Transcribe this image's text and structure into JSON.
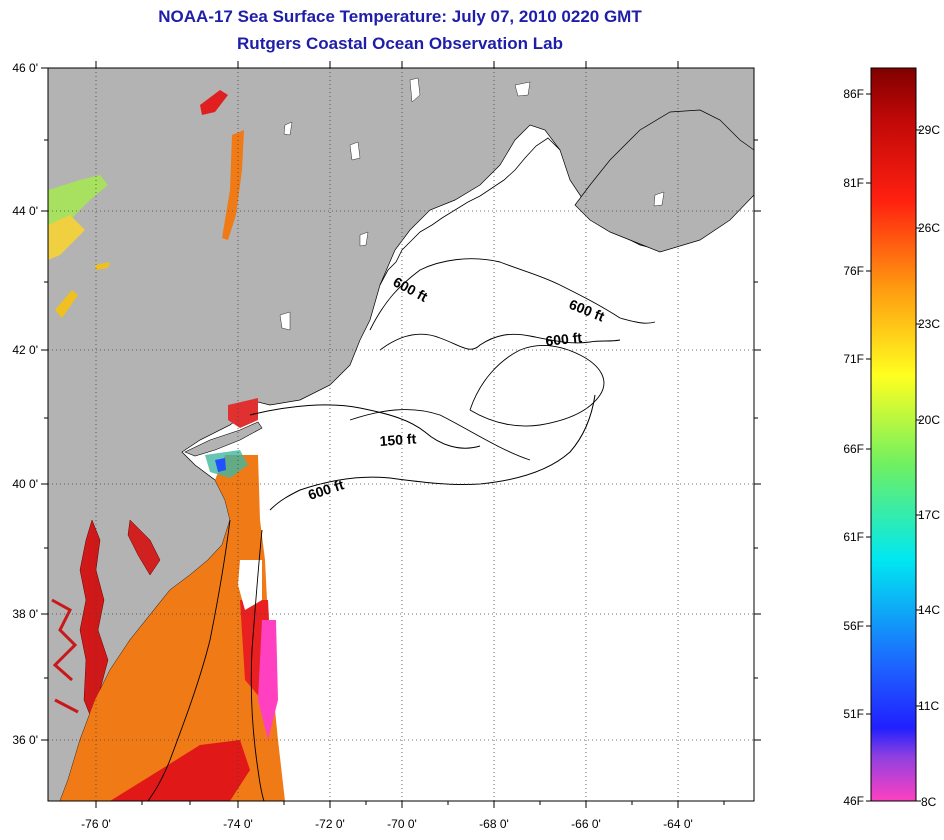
{
  "header": {
    "title": "NOAA-17 Sea Surface Temperature:  July 07, 2010 0220 GMT",
    "subtitle": "Rutgers Coastal Ocean Observation Lab"
  },
  "map": {
    "lon_ticks": [
      "-76 0'",
      "-74 0'",
      "-72 0'",
      "-70 0'",
      "-68 0'",
      "-66 0'",
      "-64 0'"
    ],
    "lat_ticks": [
      "46 0'",
      "44 0'",
      "42 0'",
      "40 0'",
      "38 0'",
      "36 0'"
    ],
    "contour_labels": [
      "600 ft",
      "600 ft",
      "600 ft",
      "150 ft",
      "600 ft"
    ],
    "colors": {
      "land": "#b3b3b3",
      "ocean_no_data": "#ffffff",
      "warm_water": "#f07a16",
      "hot_water": "#e0141c"
    }
  },
  "colorbar": {
    "fahrenheit": [
      "86F",
      "81F",
      "76F",
      "71F",
      "66F",
      "61F",
      "56F",
      "51F",
      "46F"
    ],
    "celsius": [
      "29C",
      "26C",
      "23C",
      "20C",
      "17C",
      "14C",
      "11C",
      "8C"
    ]
  }
}
